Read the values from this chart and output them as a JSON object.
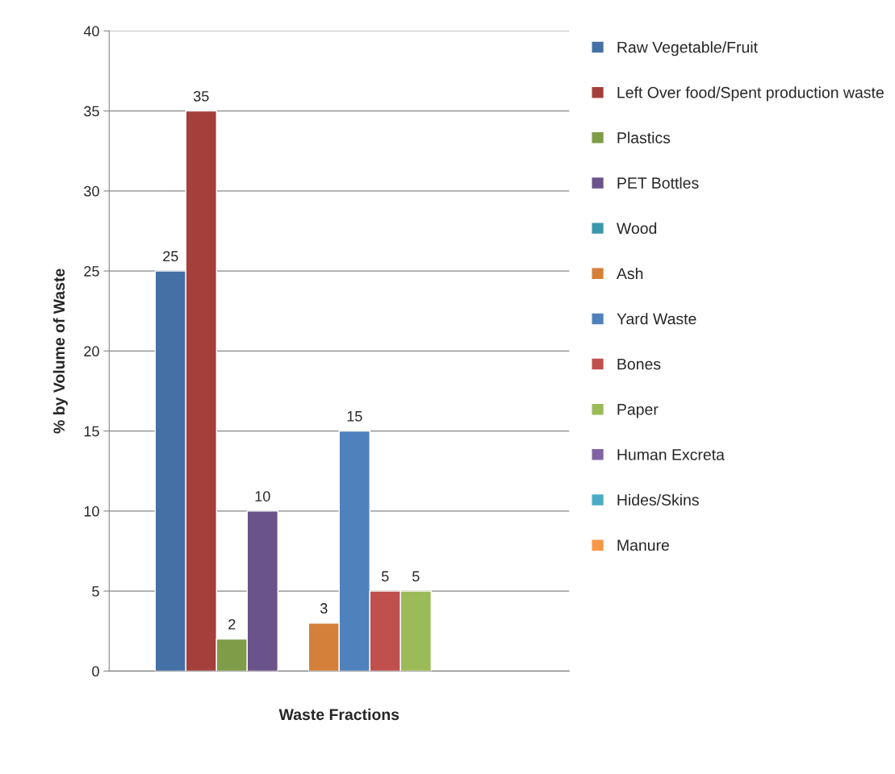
{
  "chart_data": {
    "type": "bar",
    "xlabel": "Waste Fractions",
    "ylabel": "% by Volume of Waste",
    "categories": [
      null
    ],
    "series": [
      {
        "name": "Raw Vegetable/Fruit",
        "color": "#4470a5",
        "values": [
          25
        ]
      },
      {
        "name": "Left Over food/Spent production waste",
        "color": "#a43f3c",
        "values": [
          35
        ]
      },
      {
        "name": "Plastics",
        "color": "#7f9c48",
        "values": [
          2
        ]
      },
      {
        "name": "PET Bottles",
        "color": "#6a528a",
        "values": [
          10
        ]
      },
      {
        "name": "Wood",
        "color": "#3a97ad",
        "values": [
          null
        ]
      },
      {
        "name": "Ash",
        "color": "#d4803a",
        "values": [
          3
        ]
      },
      {
        "name": "Yard Waste",
        "color": "#4f81bd",
        "values": [
          15
        ]
      },
      {
        "name": "Bones",
        "color": "#c0504d",
        "values": [
          5
        ]
      },
      {
        "name": "Paper",
        "color": "#9bbb59",
        "values": [
          5
        ]
      },
      {
        "name": "Human Excreta",
        "color": "#8064a2",
        "values": [
          null
        ]
      },
      {
        "name": "Hides/Skins",
        "color": "#4bacc6",
        "values": [
          null
        ]
      },
      {
        "name": "Manure",
        "color": "#f79646",
        "values": [
          null
        ]
      }
    ],
    "ylim": [
      0,
      40
    ],
    "yticks": [
      0,
      5,
      10,
      15,
      20,
      25,
      30,
      35,
      40
    ],
    "grid": "y",
    "legend": "right",
    "data_labels": true
  }
}
